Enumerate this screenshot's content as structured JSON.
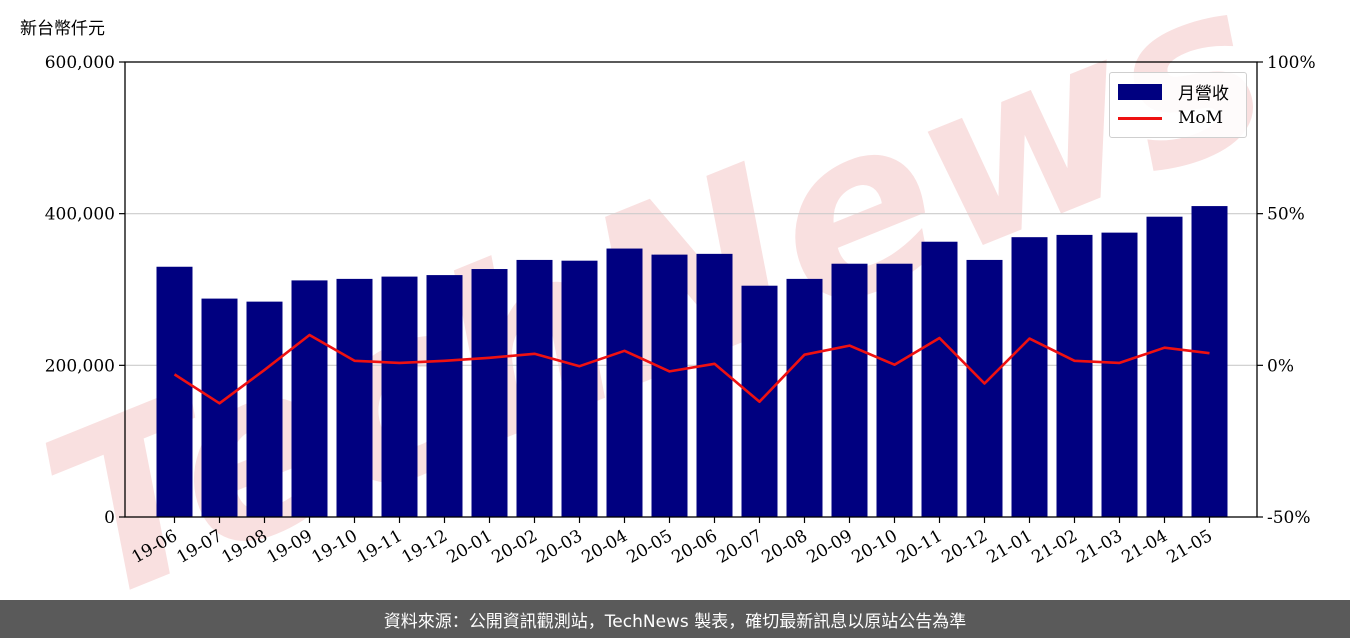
{
  "unit_label": "新台幣仟元",
  "legend": {
    "bar_label": "月營收",
    "line_label": "MoM"
  },
  "footer_text": "資料來源：公開資訊觀測站，TechNews 製表，確切最新訊息以原站公告為準",
  "watermark_text": "TechNews",
  "colors": {
    "bar": "#000080",
    "line": "#ee1111",
    "grid": "#cccccc",
    "footer_bg": "#5a5a5a",
    "watermark": "#f7d6d6"
  },
  "chart_data": {
    "type": "bar",
    "categories": [
      "19-06",
      "19-07",
      "19-08",
      "19-09",
      "19-10",
      "19-11",
      "19-12",
      "20-01",
      "20-02",
      "20-03",
      "20-04",
      "20-05",
      "20-06",
      "20-07",
      "20-08",
      "20-09",
      "20-10",
      "20-11",
      "20-12",
      "21-01",
      "21-02",
      "21-03",
      "21-04",
      "21-05"
    ],
    "series": [
      {
        "name": "月營收",
        "type": "bar",
        "axis": "left",
        "values": [
          330000,
          288000,
          284000,
          312000,
          314000,
          317000,
          319000,
          327000,
          339000,
          338000,
          354000,
          346000,
          347000,
          305000,
          314000,
          334000,
          334000,
          363000,
          339000,
          369000,
          372000,
          375000,
          396000,
          410000
        ]
      },
      {
        "name": "MoM",
        "type": "line",
        "axis": "right",
        "values": [
          -3.0,
          -12.5,
          -1.5,
          10.0,
          1.5,
          0.8,
          1.5,
          2.5,
          3.8,
          -0.3,
          4.8,
          -2.0,
          0.5,
          -12.0,
          3.5,
          6.5,
          0.2,
          9.0,
          -6.0,
          8.8,
          1.5,
          0.8,
          5.8,
          4.0
        ]
      }
    ],
    "y_left": {
      "ylim": [
        0,
        600000
      ],
      "ticks": [
        0,
        200000,
        400000,
        600000
      ],
      "tick_labels": [
        "0",
        "200,000",
        "400,000",
        "600,000"
      ]
    },
    "y_right": {
      "ylim": [
        -50,
        100
      ],
      "ticks": [
        -50,
        0,
        50,
        100
      ],
      "tick_labels": [
        "-50%",
        "0%",
        "50%",
        "100%"
      ]
    },
    "grid": "horizontal",
    "legend_position": "top-right"
  }
}
